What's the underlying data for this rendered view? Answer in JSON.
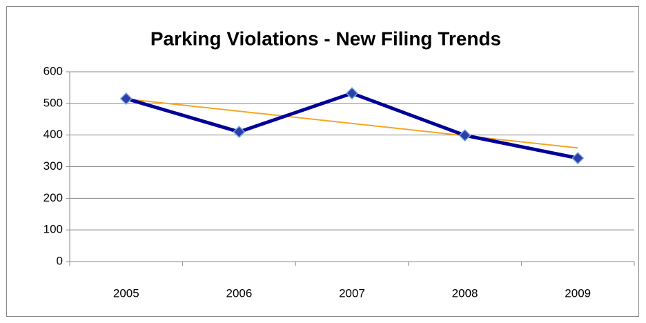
{
  "chart_data": {
    "type": "line",
    "title": "Parking Violations - New Filing Trends",
    "categories": [
      "2005",
      "2006",
      "2007",
      "2008",
      "2009"
    ],
    "values": [
      515,
      410,
      532,
      399,
      327
    ],
    "color": "#000099",
    "marker_color": "#2e3ea8",
    "trendline": true,
    "trendline_color": "#f5a623",
    "ylim": [
      0,
      600
    ],
    "yticks": [
      0,
      100,
      200,
      300,
      400,
      500,
      600
    ],
    "grid": true
  }
}
